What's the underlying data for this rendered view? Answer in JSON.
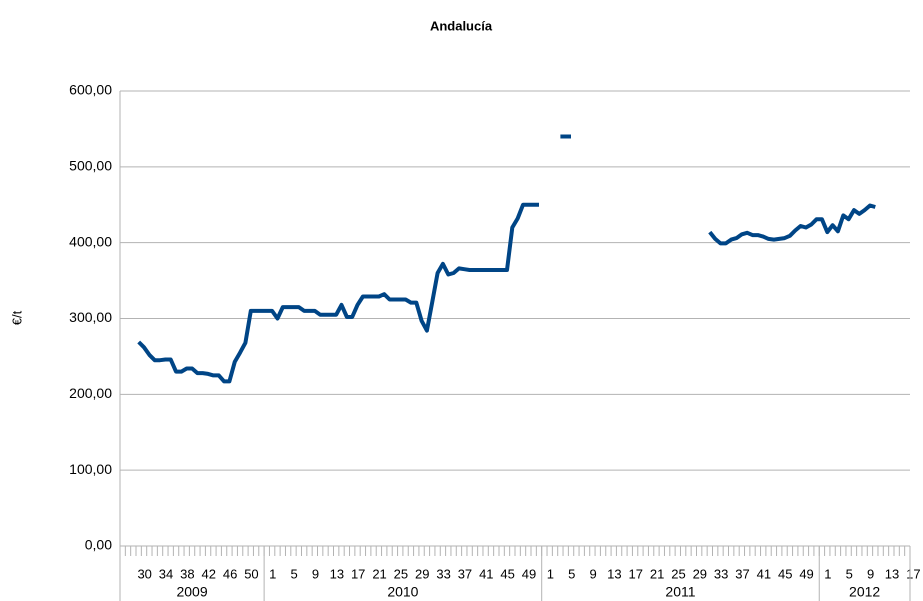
{
  "chart_data": {
    "type": "line",
    "title": "Andalucía",
    "y_label": "€/t",
    "color": "#004586",
    "grid": true,
    "ylim": [
      0,
      600
    ],
    "yticks": [
      {
        "value": 0,
        "label": "0,00"
      },
      {
        "value": 100,
        "label": "100,00"
      },
      {
        "value": 200,
        "label": "200,00"
      },
      {
        "value": 300,
        "label": "300,00"
      },
      {
        "value": 400,
        "label": "400,00"
      },
      {
        "value": 500,
        "label": "500,00"
      },
      {
        "value": 600,
        "label": "600,00"
      }
    ],
    "category_groups": [
      {
        "label": "2009",
        "categories": [
          null,
          null,
          null,
          "30",
          null,
          null,
          null,
          "34",
          null,
          null,
          null,
          "38",
          null,
          null,
          null,
          "42",
          null,
          null,
          null,
          "46",
          null,
          null,
          null,
          "50",
          null,
          null,
          null
        ]
      },
      {
        "label": "2010",
        "categories": [
          "1",
          null,
          null,
          null,
          "5",
          null,
          null,
          null,
          "9",
          null,
          null,
          null,
          "13",
          null,
          null,
          null,
          "17",
          null,
          null,
          null,
          "21",
          null,
          null,
          null,
          "25",
          null,
          null,
          null,
          "29",
          null,
          null,
          null,
          "33",
          null,
          null,
          null,
          "37",
          null,
          null,
          null,
          "41",
          null,
          null,
          null,
          "45",
          null,
          null,
          null,
          "49",
          null,
          null,
          null
        ]
      },
      {
        "label": "2011",
        "categories": [
          "1",
          null,
          null,
          null,
          "5",
          null,
          null,
          null,
          "9",
          null,
          null,
          null,
          "13",
          null,
          null,
          null,
          "17",
          null,
          null,
          null,
          "21",
          null,
          null,
          null,
          "25",
          null,
          null,
          null,
          "29",
          null,
          null,
          null,
          "33",
          null,
          null,
          null,
          "37",
          null,
          null,
          null,
          "41",
          null,
          null,
          null,
          "45",
          null,
          null,
          null,
          "49",
          null,
          null,
          null
        ]
      },
      {
        "label": "2012",
        "categories": [
          "1",
          null,
          null,
          null,
          "5",
          null,
          null,
          null,
          "9",
          null,
          null,
          null,
          "13",
          null,
          null,
          null,
          "17"
        ]
      }
    ],
    "values": [
      null,
      null,
      null,
      269,
      262,
      252,
      245,
      245,
      246,
      246,
      230,
      230,
      234,
      234,
      228,
      228,
      227,
      225,
      225,
      217,
      217,
      243,
      255,
      268,
      310,
      310,
      310,
      310,
      310,
      300,
      315,
      315,
      315,
      315,
      310,
      310,
      310,
      305,
      305,
      305,
      305,
      318,
      302,
      302,
      318,
      329,
      329,
      329,
      329,
      332,
      325,
      325,
      325,
      325,
      321,
      321,
      297,
      284,
      322,
      360,
      372,
      358,
      360,
      366,
      365,
      364,
      364,
      364,
      364,
      364,
      364,
      364,
      364,
      420,
      432,
      450,
      450,
      450,
      450,
      null,
      null,
      null,
      540,
      540,
      540,
      null,
      null,
      null,
      null,
      null,
      null,
      null,
      null,
      null,
      null,
      null,
      null,
      null,
      null,
      null,
      null,
      null,
      null,
      null,
      null,
      null,
      null,
      null,
      null,
      null,
      414,
      405,
      399,
      399,
      404,
      406,
      411,
      413,
      410,
      410,
      408,
      405,
      404,
      405,
      406,
      409,
      416,
      422,
      420,
      424,
      431,
      431,
      414,
      423,
      415,
      436,
      431,
      443,
      438,
      443,
      449,
      447,
      null,
      null,
      null,
      null,
      null,
      null
    ]
  }
}
